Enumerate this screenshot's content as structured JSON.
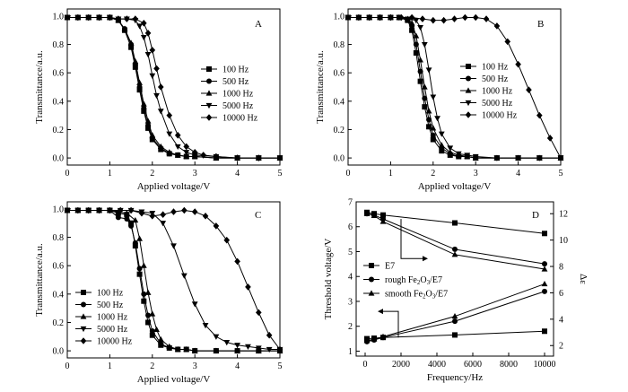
{
  "chart_data": [
    {
      "panel": "A",
      "type": "line",
      "xlabel": "Applied voltage/V",
      "ylabel": "Transmittance/a.u.",
      "xlim": [
        0,
        5
      ],
      "ylim": [
        -0.05,
        1.05
      ],
      "xticks": [
        "0",
        "1",
        "2",
        "3",
        "4",
        "5"
      ],
      "yticks": [
        "0.0",
        "0.2",
        "0.4",
        "0.6",
        "0.8",
        "1.0"
      ],
      "legend": "center-right",
      "series": [
        {
          "name": "100 Hz",
          "marker": "square",
          "x": [
            0,
            0.25,
            0.5,
            0.75,
            1.0,
            1.2,
            1.35,
            1.5,
            1.6,
            1.7,
            1.8,
            1.9,
            2.0,
            2.2,
            2.4,
            2.6,
            2.8,
            3.0,
            3.5,
            4.0,
            4.5,
            5.0
          ],
          "y": [
            0.99,
            0.99,
            0.99,
            0.99,
            0.99,
            0.97,
            0.9,
            0.78,
            0.64,
            0.48,
            0.33,
            0.21,
            0.13,
            0.06,
            0.03,
            0.02,
            0.01,
            0.01,
            0.0,
            0.0,
            0.0,
            0.0
          ]
        },
        {
          "name": "500 Hz",
          "marker": "circle",
          "x": [
            0,
            0.25,
            0.5,
            0.75,
            1.0,
            1.2,
            1.35,
            1.5,
            1.6,
            1.7,
            1.8,
            1.9,
            2.0,
            2.2,
            2.4,
            2.6,
            2.8,
            3.0,
            3.5,
            4.0,
            4.5,
            5.0
          ],
          "y": [
            0.99,
            0.99,
            0.99,
            0.99,
            0.99,
            0.97,
            0.91,
            0.8,
            0.66,
            0.5,
            0.35,
            0.23,
            0.14,
            0.07,
            0.03,
            0.02,
            0.01,
            0.01,
            0.0,
            0.0,
            0.0,
            0.0
          ]
        },
        {
          "name": "1000 Hz",
          "marker": "triangle-up",
          "x": [
            0,
            0.25,
            0.5,
            0.75,
            1.0,
            1.2,
            1.35,
            1.5,
            1.6,
            1.7,
            1.8,
            1.9,
            2.0,
            2.2,
            2.4,
            2.6,
            2.8,
            3.0,
            3.5,
            4.0,
            4.5,
            5.0
          ],
          "y": [
            0.99,
            0.99,
            0.99,
            0.99,
            0.99,
            0.97,
            0.91,
            0.81,
            0.68,
            0.53,
            0.38,
            0.26,
            0.16,
            0.08,
            0.04,
            0.02,
            0.01,
            0.01,
            0.0,
            0.0,
            0.0,
            0.0
          ]
        },
        {
          "name": "5000 Hz",
          "marker": "triangle-down",
          "x": [
            0,
            0.25,
            0.5,
            0.75,
            1.0,
            1.2,
            1.4,
            1.6,
            1.7,
            1.8,
            1.9,
            2.0,
            2.1,
            2.2,
            2.4,
            2.6,
            2.8,
            3.0,
            3.5,
            4.0,
            4.5,
            5.0
          ],
          "y": [
            0.99,
            0.99,
            0.99,
            0.99,
            0.99,
            0.98,
            0.98,
            0.97,
            0.93,
            0.85,
            0.73,
            0.58,
            0.44,
            0.33,
            0.17,
            0.08,
            0.04,
            0.02,
            0.01,
            0.0,
            0.0,
            0.0
          ]
        },
        {
          "name": "10000 Hz",
          "marker": "diamond",
          "x": [
            0,
            0.25,
            0.5,
            0.75,
            1.0,
            1.2,
            1.4,
            1.6,
            1.8,
            1.9,
            2.0,
            2.1,
            2.2,
            2.4,
            2.6,
            2.8,
            3.0,
            3.2,
            3.5,
            4.0,
            4.5,
            5.0
          ],
          "y": [
            0.99,
            0.99,
            0.99,
            0.99,
            0.99,
            0.98,
            0.98,
            0.98,
            0.95,
            0.88,
            0.76,
            0.63,
            0.5,
            0.3,
            0.16,
            0.08,
            0.04,
            0.02,
            0.01,
            0.0,
            0.0,
            0.0
          ]
        }
      ]
    },
    {
      "panel": "B",
      "type": "line",
      "xlabel": "Applied voltage/V",
      "ylabel": "Transmittance/a.u.",
      "xlim": [
        0,
        5
      ],
      "ylim": [
        -0.05,
        1.05
      ],
      "xticks": [
        "0",
        "1",
        "2",
        "3",
        "4",
        "5"
      ],
      "yticks": [
        "0.0",
        "0.2",
        "0.4",
        "0.6",
        "0.8",
        "1.0"
      ],
      "legend": "center-left",
      "series": [
        {
          "name": "100 Hz",
          "marker": "square",
          "x": [
            0,
            0.25,
            0.5,
            0.75,
            1.0,
            1.2,
            1.4,
            1.5,
            1.6,
            1.7,
            1.8,
            1.9,
            2.0,
            2.2,
            2.4,
            2.6,
            2.8,
            3.0,
            3.5,
            4.0,
            4.5,
            5.0
          ],
          "y": [
            0.99,
            0.99,
            0.99,
            0.99,
            0.99,
            0.99,
            0.97,
            0.9,
            0.74,
            0.54,
            0.36,
            0.22,
            0.13,
            0.05,
            0.02,
            0.01,
            0.01,
            0.0,
            0.0,
            0.0,
            0.0,
            0.0
          ]
        },
        {
          "name": "500 Hz",
          "marker": "circle",
          "x": [
            0,
            0.25,
            0.5,
            0.75,
            1.0,
            1.2,
            1.4,
            1.5,
            1.6,
            1.7,
            1.8,
            1.9,
            2.0,
            2.2,
            2.4,
            2.6,
            2.8,
            3.0,
            3.5,
            4.0,
            4.5,
            5.0
          ],
          "y": [
            0.99,
            0.99,
            0.99,
            0.99,
            0.99,
            0.99,
            0.97,
            0.93,
            0.8,
            0.61,
            0.42,
            0.27,
            0.16,
            0.07,
            0.03,
            0.01,
            0.01,
            0.0,
            0.0,
            0.0,
            0.0,
            0.0
          ]
        },
        {
          "name": "1000 Hz",
          "marker": "triangle-up",
          "x": [
            0,
            0.25,
            0.5,
            0.75,
            1.0,
            1.2,
            1.4,
            1.5,
            1.6,
            1.7,
            1.8,
            1.9,
            2.0,
            2.2,
            2.4,
            2.6,
            2.8,
            3.0,
            3.5,
            4.0,
            4.5,
            5.0
          ],
          "y": [
            0.99,
            0.99,
            0.99,
            0.99,
            0.99,
            0.99,
            0.98,
            0.95,
            0.86,
            0.69,
            0.5,
            0.33,
            0.21,
            0.09,
            0.04,
            0.02,
            0.01,
            0.0,
            0.0,
            0.0,
            0.0,
            0.0
          ]
        },
        {
          "name": "5000 Hz",
          "marker": "triangle-down",
          "x": [
            0,
            0.25,
            0.5,
            0.75,
            1.0,
            1.2,
            1.4,
            1.6,
            1.7,
            1.8,
            1.9,
            2.0,
            2.1,
            2.2,
            2.4,
            2.6,
            2.8,
            3.0,
            3.5,
            4.0,
            4.5,
            5.0
          ],
          "y": [
            0.99,
            0.99,
            0.99,
            0.99,
            0.99,
            0.99,
            0.98,
            0.97,
            0.92,
            0.8,
            0.62,
            0.43,
            0.28,
            0.17,
            0.07,
            0.03,
            0.02,
            0.01,
            0.0,
            0.0,
            0.0,
            0.0
          ]
        },
        {
          "name": "10000 Hz",
          "marker": "diamond",
          "x": [
            0,
            0.25,
            0.5,
            0.75,
            1.0,
            1.25,
            1.5,
            1.75,
            2.0,
            2.25,
            2.5,
            2.75,
            3.0,
            3.25,
            3.5,
            3.75,
            4.0,
            4.25,
            4.5,
            4.75,
            5.0
          ],
          "y": [
            0.99,
            0.99,
            0.99,
            0.99,
            0.99,
            0.99,
            0.99,
            0.98,
            0.97,
            0.97,
            0.98,
            0.99,
            0.99,
            0.98,
            0.93,
            0.82,
            0.66,
            0.48,
            0.3,
            0.14,
            0.0
          ]
        }
      ]
    },
    {
      "panel": "C",
      "type": "line",
      "xlabel": "Applied voltage/V",
      "ylabel": "Transmittance/a.u.",
      "xlim": [
        0,
        5
      ],
      "ylim": [
        -0.05,
        1.05
      ],
      "xticks": [
        "0",
        "1",
        "2",
        "3",
        "4",
        "5"
      ],
      "yticks": [
        "0.0",
        "0.2",
        "0.4",
        "0.6",
        "0.8",
        "1.0"
      ],
      "legend": "bottom-left",
      "series": [
        {
          "name": "100 Hz",
          "marker": "square",
          "x": [
            0,
            0.25,
            0.5,
            0.75,
            1.0,
            1.2,
            1.4,
            1.5,
            1.6,
            1.7,
            1.8,
            1.9,
            2.0,
            2.2,
            2.4,
            2.6,
            2.8,
            3.0,
            3.5,
            4.0,
            4.5,
            5.0
          ],
          "y": [
            0.99,
            0.99,
            0.99,
            0.99,
            0.99,
            0.97,
            0.96,
            0.9,
            0.74,
            0.54,
            0.35,
            0.2,
            0.11,
            0.04,
            0.02,
            0.01,
            0.01,
            0.0,
            0.0,
            0.0,
            0.0,
            0.0
          ]
        },
        {
          "name": "500 Hz",
          "marker": "circle",
          "x": [
            0,
            0.25,
            0.5,
            0.75,
            1.0,
            1.2,
            1.4,
            1.5,
            1.6,
            1.7,
            1.8,
            1.9,
            2.0,
            2.2,
            2.4,
            2.6,
            2.8,
            3.0,
            3.5,
            4.0,
            4.5,
            5.0
          ],
          "y": [
            0.99,
            0.99,
            0.99,
            0.99,
            0.99,
            0.94,
            0.93,
            0.88,
            0.76,
            0.58,
            0.4,
            0.25,
            0.14,
            0.05,
            0.02,
            0.01,
            0.01,
            0.0,
            0.0,
            0.0,
            0.0,
            0.0
          ]
        },
        {
          "name": "1000 Hz",
          "marker": "triangle-up",
          "x": [
            0,
            0.25,
            0.5,
            0.75,
            1.0,
            1.2,
            1.4,
            1.6,
            1.7,
            1.8,
            1.9,
            2.0,
            2.1,
            2.2,
            2.4,
            2.6,
            2.8,
            3.0,
            3.5,
            4.0,
            4.5,
            5.0
          ],
          "y": [
            0.99,
            0.99,
            0.99,
            0.99,
            0.99,
            0.98,
            0.97,
            0.92,
            0.79,
            0.6,
            0.41,
            0.26,
            0.15,
            0.08,
            0.03,
            0.01,
            0.01,
            0.0,
            0.0,
            0.0,
            0.0,
            0.0
          ]
        },
        {
          "name": "5000 Hz",
          "marker": "triangle-down",
          "x": [
            0,
            0.25,
            0.5,
            0.75,
            1.0,
            1.25,
            1.5,
            1.75,
            2.0,
            2.25,
            2.5,
            2.75,
            3.0,
            3.25,
            3.5,
            3.75,
            4.0,
            4.25,
            4.5,
            4.75,
            5.0
          ],
          "y": [
            0.99,
            0.99,
            0.99,
            0.99,
            0.99,
            0.99,
            0.99,
            0.98,
            0.97,
            0.9,
            0.74,
            0.53,
            0.33,
            0.18,
            0.1,
            0.06,
            0.04,
            0.03,
            0.02,
            0.01,
            0.01
          ]
        },
        {
          "name": "10000 Hz",
          "marker": "diamond",
          "x": [
            0,
            0.25,
            0.5,
            0.75,
            1.0,
            1.25,
            1.5,
            1.75,
            2.0,
            2.25,
            2.5,
            2.75,
            3.0,
            3.25,
            3.5,
            3.75,
            4.0,
            4.25,
            4.5,
            4.75,
            5.0
          ],
          "y": [
            0.99,
            0.99,
            0.99,
            0.99,
            0.99,
            0.99,
            0.99,
            0.97,
            0.95,
            0.96,
            0.98,
            0.99,
            0.98,
            0.95,
            0.88,
            0.78,
            0.63,
            0.45,
            0.27,
            0.11,
            0.01
          ]
        }
      ]
    },
    {
      "panel": "D",
      "type": "line",
      "xlabel": "Frequency/Hz",
      "ylabel": "Threshold voltage/V",
      "y2label": "Δε",
      "xlim": [
        -500,
        10500
      ],
      "ylim": [
        0.8,
        7.0
      ],
      "y2lim": [
        1.2,
        12.9
      ],
      "xticks": [
        "0",
        "2000",
        "4000",
        "6000",
        "8000",
        "10000"
      ],
      "yticks": [
        "1",
        "2",
        "3",
        "4",
        "5",
        "6",
        "7"
      ],
      "y2ticks": [
        "2",
        "4",
        "6",
        "8",
        "10",
        "12"
      ],
      "legend": "center-left",
      "series": [
        {
          "name": "E7",
          "marker": "square",
          "axis": "left",
          "x": [
            100,
            500,
            1000,
            5000,
            10000
          ],
          "y": [
            1.5,
            1.52,
            1.55,
            1.65,
            1.8
          ]
        },
        {
          "name": "rough Fe2O3/E7",
          "marker": "circle",
          "axis": "left",
          "x": [
            100,
            500,
            1000,
            5000,
            10000
          ],
          "y": [
            1.38,
            1.45,
            1.55,
            2.2,
            3.4
          ]
        },
        {
          "name": "smooth Fe2O3/E7",
          "marker": "triangle-up",
          "axis": "left",
          "x": [
            100,
            500,
            1000,
            5000,
            10000
          ],
          "y": [
            1.42,
            1.48,
            1.58,
            2.4,
            3.7
          ]
        },
        {
          "name": "E7",
          "marker": "square",
          "axis": "right",
          "x": [
            100,
            500,
            1000,
            5000,
            10000
          ],
          "y": [
            12.1,
            12.0,
            11.9,
            11.3,
            10.5
          ]
        },
        {
          "name": "rough Fe2O3/E7",
          "marker": "circle",
          "axis": "right",
          "x": [
            100,
            500,
            1000,
            5000,
            10000
          ],
          "y": [
            12.0,
            11.9,
            11.6,
            9.3,
            8.2
          ]
        },
        {
          "name": "smooth Fe2O3/E7",
          "marker": "triangle-up",
          "axis": "right",
          "x": [
            100,
            500,
            1000,
            5000,
            10000
          ],
          "y": [
            12.0,
            11.85,
            11.4,
            8.9,
            7.8
          ]
        }
      ],
      "legend_items": [
        {
          "label": "E7",
          "marker": "square"
        },
        {
          "prefix": "rough Fe",
          "sub1": "2",
          "mid": "O",
          "sub2": "3",
          "suffix": "/E7",
          "marker": "circle"
        },
        {
          "prefix": "smooth Fe",
          "sub1": "2",
          "mid": "O",
          "sub2": "3",
          "suffix": "/E7",
          "marker": "triangle-up"
        }
      ]
    }
  ]
}
